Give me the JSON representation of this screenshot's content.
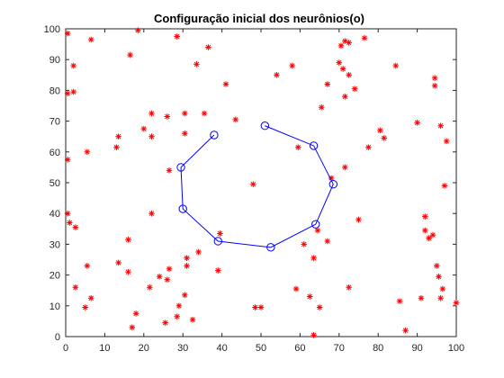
{
  "chart_data": {
    "type": "scatter",
    "title": "Configuração inicial dos neurônios(o)",
    "xlabel": "",
    "ylabel": "",
    "xlim": [
      0,
      100
    ],
    "ylim": [
      0,
      100
    ],
    "xticks": [
      0,
      10,
      20,
      30,
      40,
      50,
      60,
      70,
      80,
      90,
      100
    ],
    "yticks": [
      0,
      10,
      20,
      30,
      40,
      50,
      60,
      70,
      80,
      90,
      100
    ],
    "grid": false,
    "box": true,
    "colors": {
      "points": "#ff0000",
      "neurons": "#0000ff",
      "axes": "#262626"
    },
    "series": [
      {
        "marker": "asterisk",
        "color": "#ff0000",
        "points": [
          [
            0.5,
            98.5
          ],
          [
            2,
            88
          ],
          [
            2,
            79.5
          ],
          [
            0.5,
            79
          ],
          [
            6.5,
            96.5
          ],
          [
            0.5,
            57.5
          ],
          [
            5.5,
            60
          ],
          [
            0.5,
            40
          ],
          [
            1,
            37
          ],
          [
            2.5,
            35.5
          ],
          [
            5.5,
            23
          ],
          [
            2.5,
            16
          ],
          [
            6.5,
            12.5
          ],
          [
            5,
            9.5
          ],
          [
            16.5,
            91.5
          ],
          [
            18.5,
            99.5
          ],
          [
            13.5,
            65
          ],
          [
            13,
            61.5
          ],
          [
            16,
            31.5
          ],
          [
            13.5,
            24
          ],
          [
            16,
            21
          ],
          [
            17,
            3
          ],
          [
            18,
            7.5
          ],
          [
            21.5,
            16
          ],
          [
            22,
            72.5
          ],
          [
            20,
            67.5
          ],
          [
            22,
            65
          ],
          [
            26,
            71.5
          ],
          [
            28.5,
            97.5
          ],
          [
            30.5,
            72.5
          ],
          [
            30.5,
            66
          ],
          [
            26.5,
            54
          ],
          [
            22,
            40
          ],
          [
            24,
            19.5
          ],
          [
            26,
            18.5
          ],
          [
            26.5,
            22
          ],
          [
            25.5,
            4.5
          ],
          [
            29,
            10
          ],
          [
            28.5,
            6.5
          ],
          [
            30.5,
            13.5
          ],
          [
            31,
            23
          ],
          [
            32.5,
            5.5
          ],
          [
            34,
            27.5
          ],
          [
            31,
            25.5
          ],
          [
            33.5,
            88.5
          ],
          [
            36.5,
            94
          ],
          [
            35.5,
            72.5
          ],
          [
            41,
            82
          ],
          [
            43.5,
            70.5
          ],
          [
            39.5,
            33.5
          ],
          [
            39,
            21.5
          ],
          [
            48,
            49.5
          ],
          [
            48.5,
            9.5
          ],
          [
            50,
            9.5
          ],
          [
            54,
            85
          ],
          [
            58,
            88
          ],
          [
            59.5,
            61.5
          ],
          [
            59,
            15.5
          ],
          [
            61,
            30
          ],
          [
            62.5,
            13
          ],
          [
            63.5,
            25.5
          ],
          [
            63.5,
            0.5
          ],
          [
            64.5,
            34.5
          ],
          [
            65,
            9.5
          ],
          [
            65.5,
            74.5
          ],
          [
            67,
            82
          ],
          [
            67,
            31
          ],
          [
            68,
            51.5
          ],
          [
            70,
            89
          ],
          [
            70.5,
            94.5
          ],
          [
            71.5,
            96
          ],
          [
            72.5,
            95.5
          ],
          [
            71,
            87
          ],
          [
            72.5,
            85
          ],
          [
            71.5,
            78
          ],
          [
            74,
            80.5
          ],
          [
            71.5,
            55
          ],
          [
            76.5,
            97
          ],
          [
            77.5,
            61.5
          ],
          [
            75,
            38
          ],
          [
            72.5,
            16
          ],
          [
            80.5,
            67
          ],
          [
            81.5,
            64.5
          ],
          [
            84.5,
            88
          ],
          [
            85.5,
            11.5
          ],
          [
            87,
            2
          ],
          [
            90,
            69.5
          ],
          [
            91,
            12.5
          ],
          [
            92,
            39
          ],
          [
            92,
            34.5
          ],
          [
            93,
            32
          ],
          [
            94.5,
            84
          ],
          [
            94.5,
            81.5
          ],
          [
            94,
            33
          ],
          [
            95,
            23
          ],
          [
            95.5,
            19.5
          ],
          [
            96,
            68.5
          ],
          [
            96,
            12.5
          ],
          [
            96.5,
            15.5
          ],
          [
            97,
            49
          ],
          [
            97.5,
            63.5
          ],
          [
            100,
            11
          ]
        ]
      },
      {
        "marker": "circle",
        "color": "#0000ff",
        "connected": true,
        "points": [
          [
            51,
            68.5
          ],
          [
            63.5,
            62
          ],
          [
            68.5,
            49.5
          ],
          [
            64,
            36.5
          ],
          [
            52.5,
            29
          ],
          [
            39,
            31
          ],
          [
            30,
            41.5
          ],
          [
            29.5,
            55
          ],
          [
            38,
            65.5
          ]
        ]
      }
    ]
  }
}
